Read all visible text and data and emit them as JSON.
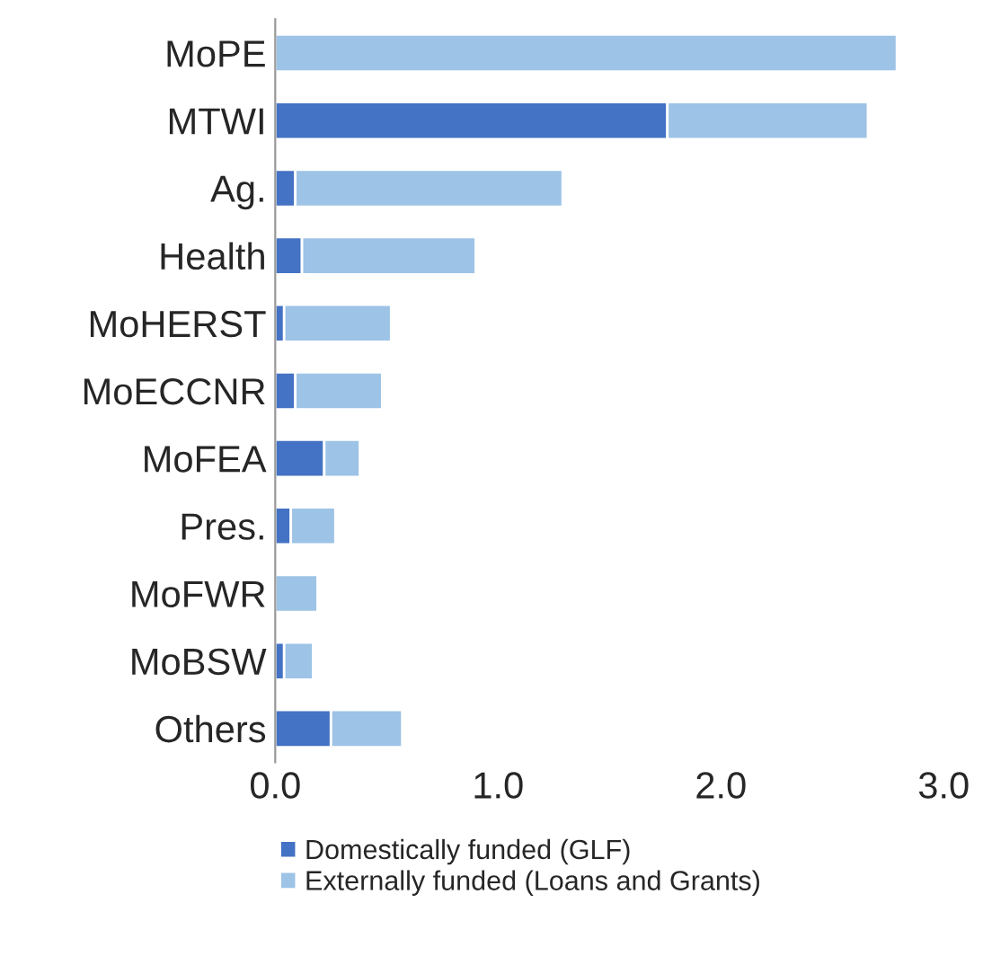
{
  "chart_data": {
    "type": "bar",
    "orientation": "horizontal",
    "stacked": true,
    "categories": [
      "MoPE",
      "MTWI",
      "Ag.",
      "Health",
      "MoHERST",
      "MoECCNR",
      "MoFEA",
      "Pres.",
      "MoFWR",
      "MoBSW",
      "Others"
    ],
    "series": [
      {
        "name": "Domestically funded (GLF)",
        "color": "#4472c4",
        "values": [
          0,
          1.76,
          0.09,
          0.12,
          0.04,
          0.09,
          0.22,
          0.07,
          0,
          0.04,
          0.25
        ]
      },
      {
        "name": "Externally funded (Loans and Grants)",
        "color": "#9dc3e6",
        "values": [
          2.79,
          0.9,
          1.2,
          0.78,
          0.48,
          0.39,
          0.16,
          0.2,
          0.19,
          0.13,
          0.32
        ]
      }
    ],
    "xlim": [
      0,
      3.0
    ],
    "xticks": [
      {
        "value": 0,
        "label": "0.0"
      },
      {
        "value": 1,
        "label": "1.0"
      },
      {
        "value": 2,
        "label": "2.0"
      },
      {
        "value": 3,
        "label": "3.0"
      }
    ],
    "grid": false,
    "legend": "bottom"
  }
}
